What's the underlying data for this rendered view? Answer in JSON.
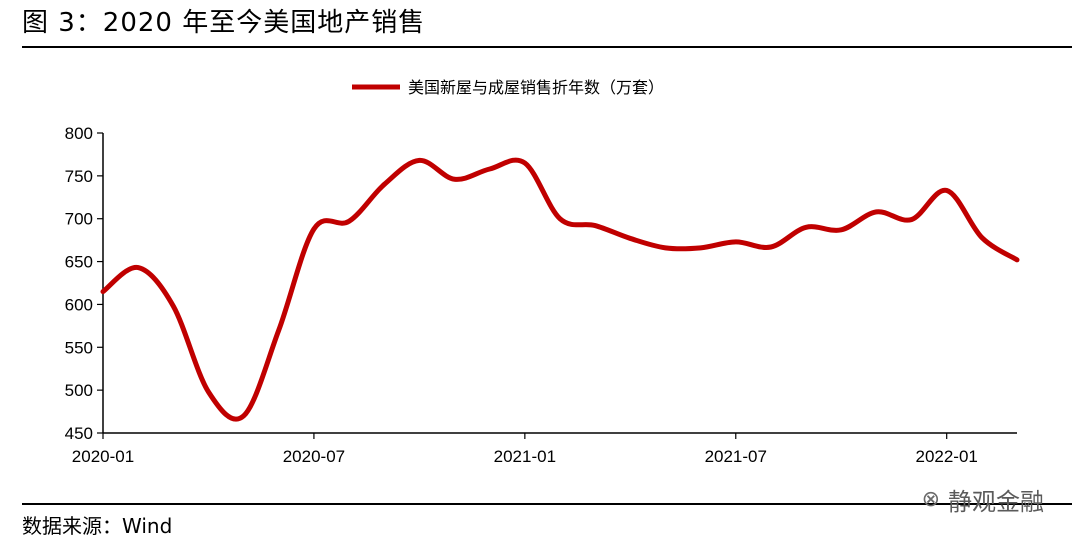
{
  "header": {
    "figure_title": "图 3：2020 年至今美国地产销售"
  },
  "footer": {
    "source": "数据来源：Wind",
    "watermark": "静观金融",
    "watermark_icon": "wechat-icon"
  },
  "colors": {
    "series": "#c00000"
  },
  "chart_data": {
    "type": "line",
    "title": "",
    "xlabel": "",
    "ylabel": "",
    "ylim": [
      450,
      800
    ],
    "yticks": [
      450,
      500,
      550,
      600,
      650,
      700,
      750,
      800
    ],
    "xticks": [
      "2020-01",
      "2020-07",
      "2021-01",
      "2021-07",
      "2022-01"
    ],
    "grid": false,
    "legend": "top-center",
    "x": [
      "2020-01",
      "2020-02",
      "2020-03",
      "2020-04",
      "2020-05",
      "2020-06",
      "2020-07",
      "2020-08",
      "2020-09",
      "2020-10",
      "2020-11",
      "2020-12",
      "2021-01",
      "2021-02",
      "2021-03",
      "2021-04",
      "2021-05",
      "2021-06",
      "2021-07",
      "2021-08",
      "2021-09",
      "2021-10",
      "2021-11",
      "2021-12",
      "2022-01",
      "2022-02",
      "2022-03"
    ],
    "series": [
      {
        "name": "美国新屋与成屋销售折年数（万套）",
        "values": [
          615,
          643,
          598,
          498,
          470,
          570,
          688,
          697,
          740,
          768,
          746,
          758,
          765,
          700,
          692,
          677,
          666,
          666,
          673,
          667,
          690,
          687,
          708,
          699,
          733,
          678,
          652
        ]
      }
    ]
  }
}
